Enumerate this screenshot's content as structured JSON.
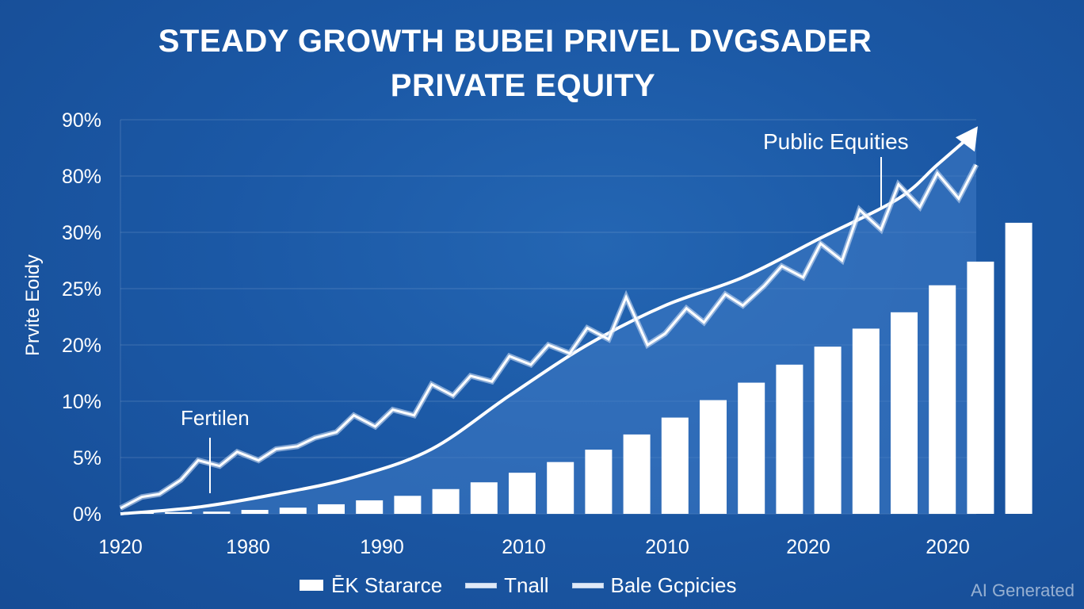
{
  "title": "STEADY GROWTH BUBEI PRIVEL DVGSADER",
  "subtitle": "PRIVATE EQUITY",
  "watermark": "AI Generated",
  "colors": {
    "background": "#1b58a5",
    "bars": "#ffffff",
    "lines": "#ffffff",
    "area_fill": "#3f7cc7"
  },
  "legend": [
    {
      "label": "ĒK Stararce",
      "kind": "bar"
    },
    {
      "label": "Tnall",
      "kind": "line"
    },
    {
      "label": "Bale Gcpicies",
      "kind": "line"
    }
  ],
  "chart_data": {
    "type": "bar",
    "title": "STEADY GROWTH BUBEI PRIVEL DVGSADER",
    "subtitle": "PRIVATE EQUITY",
    "ylabel": "Prvite Eoidy",
    "xlabel": "",
    "y_tick_labels": [
      "0%",
      "5%",
      "10%",
      "20%",
      "25%",
      "30%",
      "80%",
      "90%"
    ],
    "x_tick_labels": [
      "1920",
      "1980",
      "1990",
      "2010",
      "2010",
      "2020",
      "2020"
    ],
    "grid": true,
    "legend_position": "bottom",
    "annotations": [
      {
        "text": "Fertilen",
        "x_index": 3.3,
        "y_level": 0.5
      },
      {
        "text": "Public Equities",
        "x_index": 19.1,
        "y_level": 4.2
      }
    ],
    "bar_series": {
      "name": "ĒK Starerce",
      "values_in_tick_levels": [
        0.02,
        0.03,
        0.04,
        0.07,
        0.11,
        0.17,
        0.24,
        0.32,
        0.44,
        0.56,
        0.73,
        0.92,
        1.14,
        1.41,
        1.71,
        2.02,
        2.33,
        2.65,
        2.97,
        3.29,
        3.58,
        4.06,
        4.48,
        5.17
      ]
    },
    "series": [
      {
        "name": "Tnall",
        "kind": "smooth",
        "x_positions": [
          0,
          2,
          4,
          6,
          8,
          10,
          12,
          14,
          16,
          18,
          20,
          21,
          22
        ],
        "values_in_tick_levels": [
          0.0,
          0.12,
          0.35,
          0.65,
          1.15,
          2.1,
          3.0,
          3.7,
          4.2,
          4.9,
          5.6,
          6.2,
          6.8
        ]
      },
      {
        "name": "Bale Gcpicies",
        "kind": "jagged",
        "x_positions": [
          0,
          0.55,
          1,
          1.55,
          2,
          2.55,
          3,
          3.55,
          4,
          4.55,
          5,
          5.55,
          6,
          6.55,
          7,
          7.55,
          8,
          8.55,
          9,
          9.55,
          10,
          10.55,
          11,
          11.55,
          12,
          12.55,
          13,
          13.55,
          14,
          14.55,
          15,
          15.55,
          16,
          16.55,
          17,
          17.55,
          18,
          18.55,
          19,
          19.55,
          20,
          20.55,
          21,
          21.55,
          22
        ],
        "values_in_tick_levels": [
          0.1,
          0.3,
          0.35,
          0.6,
          0.95,
          0.85,
          1.1,
          0.95,
          1.15,
          1.2,
          1.35,
          1.45,
          1.75,
          1.55,
          1.85,
          1.75,
          2.3,
          2.1,
          2.45,
          2.35,
          2.8,
          2.65,
          3.0,
          2.85,
          3.3,
          3.1,
          3.85,
          3.0,
          3.2,
          3.65,
          3.4,
          3.9,
          3.7,
          4.05,
          4.4,
          4.2,
          4.8,
          4.5,
          5.4,
          5.05,
          5.85,
          5.45,
          6.05,
          5.6,
          6.2
        ]
      }
    ]
  }
}
